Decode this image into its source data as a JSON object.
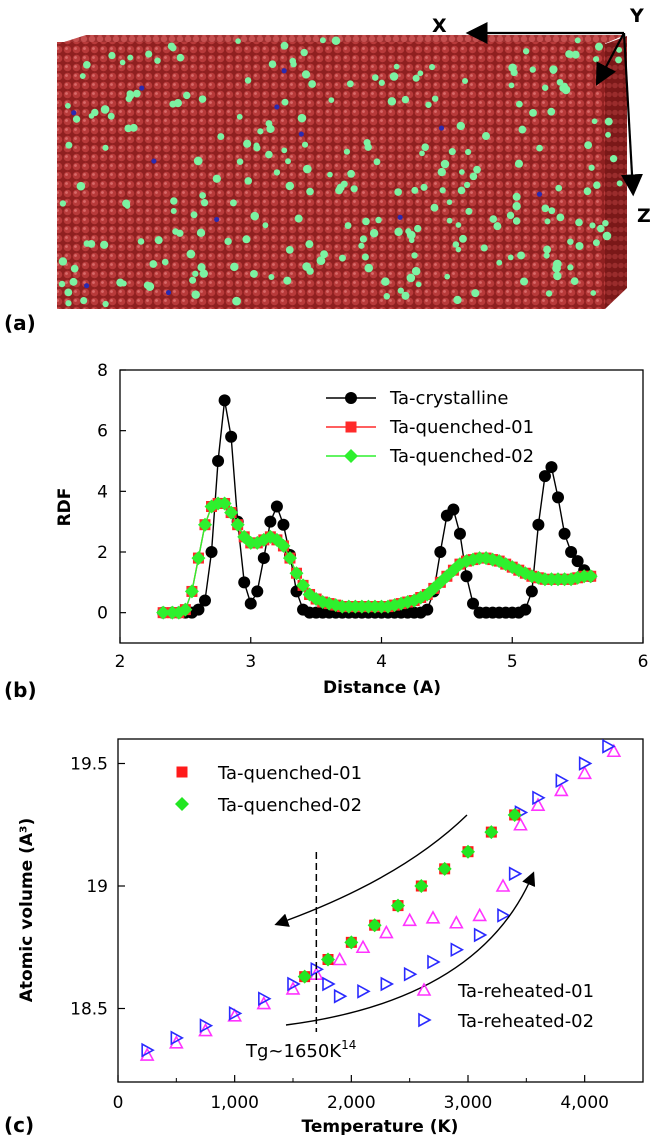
{
  "panels": {
    "a": {
      "label": "(a)",
      "axes": {
        "x": "X",
        "y": "Y",
        "z": "Z"
      },
      "colors": {
        "box": "#a52a2a",
        "box_dark": "#7d1c1c",
        "green_atoms": "#7cf2a2",
        "blue_atoms": "#2a2ab0"
      }
    },
    "b": {
      "label": "(b)",
      "chart_data": {
        "type": "line",
        "xlabel": "Distance (A)",
        "ylabel": "RDF",
        "xlim": [
          2,
          6
        ],
        "ylim": [
          -1,
          8
        ],
        "xticks": [
          "2",
          "3",
          "4",
          "5",
          "6"
        ],
        "yticks": [
          "0",
          "2",
          "4",
          "6",
          "8"
        ],
        "legend_position": "top-right",
        "series": [
          {
            "name": "Ta-crystalline",
            "color": "#000000",
            "marker": "circle",
            "x": [
              2.33,
              2.4,
              2.45,
              2.5,
              2.55,
              2.6,
              2.65,
              2.7,
              2.75,
              2.8,
              2.85,
              2.9,
              2.95,
              3.0,
              3.05,
              3.1,
              3.15,
              3.2,
              3.25,
              3.3,
              3.35,
              3.4,
              3.45,
              3.5,
              3.55,
              3.6,
              3.65,
              3.7,
              3.75,
              3.8,
              3.85,
              3.9,
              3.95,
              4.0,
              4.05,
              4.1,
              4.15,
              4.2,
              4.25,
              4.3,
              4.35,
              4.4,
              4.45,
              4.5,
              4.55,
              4.6,
              4.65,
              4.7,
              4.75,
              4.8,
              4.85,
              4.9,
              4.95,
              5.0,
              5.05,
              5.1,
              5.15,
              5.2,
              5.25,
              5.3,
              5.35,
              5.4,
              5.45,
              5.5,
              5.55,
              5.6
            ],
            "y": [
              0,
              0,
              0,
              0,
              0,
              0.1,
              0.4,
              2.0,
              5.0,
              7.0,
              5.8,
              3.0,
              1.0,
              0.3,
              0.7,
              1.8,
              3.0,
              3.5,
              2.9,
              1.9,
              0.7,
              0.1,
              0,
              0,
              0,
              0,
              0,
              0,
              0,
              0,
              0,
              0,
              0,
              0,
              0,
              0,
              0,
              0,
              0,
              0,
              0.1,
              0.7,
              2.0,
              3.2,
              3.4,
              2.6,
              1.2,
              0.3,
              0,
              0,
              0,
              0,
              0,
              0,
              0,
              0.1,
              0.7,
              2.9,
              4.5,
              4.8,
              3.8,
              2.6,
              2.0,
              1.7,
              1.4,
              1.2
            ]
          },
          {
            "name": "Ta-quenched-01",
            "color": "#ff2a2a",
            "marker": "square",
            "x": [
              2.33,
              2.4,
              2.45,
              2.5,
              2.55,
              2.6,
              2.65,
              2.7,
              2.75,
              2.8,
              2.85,
              2.9,
              2.95,
              3.0,
              3.05,
              3.1,
              3.15,
              3.2,
              3.25,
              3.3,
              3.35,
              3.4,
              3.45,
              3.5,
              3.55,
              3.6,
              3.65,
              3.7,
              3.75,
              3.8,
              3.85,
              3.9,
              3.95,
              4.0,
              4.05,
              4.1,
              4.15,
              4.2,
              4.25,
              4.3,
              4.35,
              4.4,
              4.45,
              4.5,
              4.55,
              4.6,
              4.65,
              4.7,
              4.75,
              4.8,
              4.85,
              4.9,
              4.95,
              5.0,
              5.05,
              5.1,
              5.15,
              5.2,
              5.25,
              5.3,
              5.35,
              5.4,
              5.45,
              5.5,
              5.55,
              5.6
            ],
            "y": [
              0,
              0,
              0,
              0.1,
              0.7,
              1.8,
              2.9,
              3.5,
              3.6,
              3.6,
              3.3,
              2.9,
              2.5,
              2.3,
              2.3,
              2.4,
              2.5,
              2.4,
              2.2,
              1.8,
              1.3,
              0.9,
              0.6,
              0.45,
              0.35,
              0.3,
              0.25,
              0.2,
              0.2,
              0.2,
              0.2,
              0.2,
              0.2,
              0.2,
              0.2,
              0.25,
              0.3,
              0.35,
              0.4,
              0.5,
              0.6,
              0.8,
              1.0,
              1.2,
              1.4,
              1.6,
              1.7,
              1.75,
              1.8,
              1.8,
              1.75,
              1.7,
              1.6,
              1.5,
              1.4,
              1.3,
              1.2,
              1.15,
              1.1,
              1.1,
              1.1,
              1.1,
              1.1,
              1.15,
              1.2,
              1.2
            ]
          },
          {
            "name": "Ta-quenched-02",
            "color": "#2ef02e",
            "marker": "diamond",
            "x": [
              2.33,
              2.4,
              2.45,
              2.5,
              2.55,
              2.6,
              2.65,
              2.7,
              2.75,
              2.8,
              2.85,
              2.9,
              2.95,
              3.0,
              3.05,
              3.1,
              3.15,
              3.2,
              3.25,
              3.3,
              3.35,
              3.4,
              3.45,
              3.5,
              3.55,
              3.6,
              3.65,
              3.7,
              3.75,
              3.8,
              3.85,
              3.9,
              3.95,
              4.0,
              4.05,
              4.1,
              4.15,
              4.2,
              4.25,
              4.3,
              4.35,
              4.4,
              4.45,
              4.5,
              4.55,
              4.6,
              4.65,
              4.7,
              4.75,
              4.8,
              4.85,
              4.9,
              4.95,
              5.0,
              5.05,
              5.1,
              5.15,
              5.2,
              5.25,
              5.3,
              5.35,
              5.4,
              5.45,
              5.5,
              5.55,
              5.6
            ],
            "y": [
              0,
              0,
              0,
              0.1,
              0.7,
              1.8,
              2.9,
              3.5,
              3.6,
              3.6,
              3.3,
              2.9,
              2.5,
              2.3,
              2.3,
              2.4,
              2.5,
              2.4,
              2.2,
              1.8,
              1.3,
              0.9,
              0.6,
              0.45,
              0.35,
              0.3,
              0.25,
              0.2,
              0.2,
              0.2,
              0.2,
              0.2,
              0.2,
              0.2,
              0.2,
              0.25,
              0.3,
              0.35,
              0.4,
              0.5,
              0.6,
              0.8,
              1.0,
              1.2,
              1.4,
              1.6,
              1.7,
              1.75,
              1.8,
              1.8,
              1.75,
              1.7,
              1.6,
              1.5,
              1.4,
              1.3,
              1.2,
              1.15,
              1.1,
              1.1,
              1.1,
              1.1,
              1.1,
              1.15,
              1.2,
              1.2
            ]
          }
        ]
      }
    },
    "c": {
      "label": "(c)",
      "chart_data": {
        "type": "scatter",
        "xlabel": "Temperature (K)",
        "ylabel": "Atomic volume (A³)",
        "xlim": [
          0,
          4500
        ],
        "ylim": [
          18.2,
          19.6
        ],
        "xticks": [
          "0",
          "1,000",
          "2,000",
          "3,000",
          "4,000"
        ],
        "yticks": [
          "18.5",
          "19",
          "19.5"
        ],
        "annotation": {
          "text": "Tg~1650K",
          "superscript": "14",
          "x": 1700
        },
        "legend_top": [
          "Ta-quenched-01",
          "Ta-quenched-02"
        ],
        "legend_bottom": [
          "Ta-reheated-01",
          "Ta-reheated-02"
        ],
        "series": [
          {
            "name": "Ta-quenched-01",
            "color": "#ff1a1a",
            "marker": "square",
            "x": [
              1600,
              1800,
              2000,
              2200,
              2400,
              2600,
              2800,
              3000,
              3200,
              3400
            ],
            "y": [
              18.63,
              18.7,
              18.77,
              18.84,
              18.92,
              19.0,
              19.07,
              19.14,
              19.22,
              19.29
            ]
          },
          {
            "name": "Ta-quenched-02",
            "color": "#22e622",
            "marker": "diamond",
            "x": [
              1600,
              1800,
              2000,
              2200,
              2400,
              2600,
              2800,
              3000,
              3200,
              3400
            ],
            "y": [
              18.63,
              18.7,
              18.77,
              18.84,
              18.92,
              19.0,
              19.07,
              19.14,
              19.22,
              19.29
            ]
          },
          {
            "name": "Ta-reheated-01",
            "color": "#ff33ff",
            "marker": "triangle-up",
            "x": [
              250,
              500,
              750,
              1000,
              1250,
              1500,
              1700,
              1900,
              2100,
              2300,
              2500,
              2700,
              2900,
              3100,
              3300,
              3450,
              3600,
              3800,
              4000,
              4250
            ],
            "y": [
              18.31,
              18.36,
              18.41,
              18.47,
              18.52,
              18.58,
              18.64,
              18.7,
              18.75,
              18.81,
              18.86,
              18.87,
              18.85,
              18.88,
              19.0,
              19.25,
              19.33,
              19.39,
              19.46,
              19.55
            ]
          },
          {
            "name": "Ta-reheated-02",
            "color": "#2a2aff",
            "marker": "triangle-right",
            "x": [
              250,
              500,
              750,
              1000,
              1250,
              1500,
              1700,
              1800,
              1900,
              2100,
              2300,
              2500,
              2700,
              2900,
              3100,
              3300,
              3400,
              3450,
              3600,
              3800,
              4000,
              4200
            ],
            "y": [
              18.33,
              18.38,
              18.43,
              18.48,
              18.54,
              18.6,
              18.66,
              18.6,
              18.55,
              18.57,
              18.6,
              18.64,
              18.69,
              18.74,
              18.8,
              18.88,
              19.05,
              19.3,
              19.36,
              19.43,
              19.5,
              19.57
            ]
          }
        ]
      }
    }
  }
}
